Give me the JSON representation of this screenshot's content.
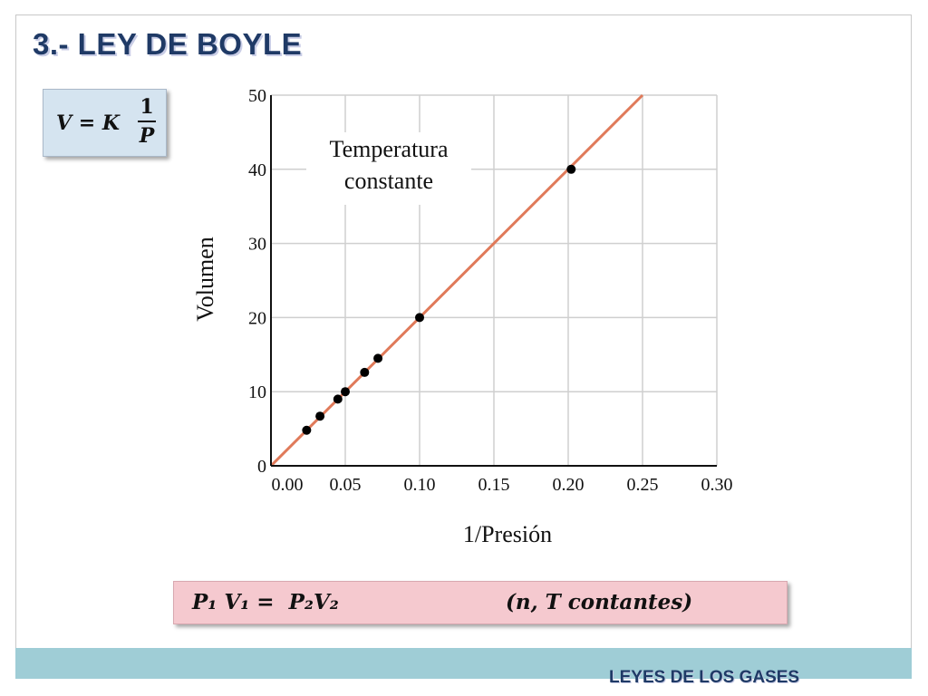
{
  "slide": {
    "title": "3.- LEY DE BOYLE",
    "footer": "LEYES DE LOS GASES"
  },
  "formula": {
    "lhs": "V = K",
    "numerator": "1",
    "denominator": "P"
  },
  "law": {
    "equation": "P₁ V₁ =  P₂V₂",
    "conditions": "(n, T contantes)"
  },
  "colors": {
    "title": "#1f3a66",
    "line": "#e07a5a",
    "points": "#000000",
    "grid": "#cfcfcf",
    "formula_box": "#d5e4f0",
    "law_box": "#f5c9cf",
    "footer_band": "#9fcdd6"
  },
  "chart_data": {
    "type": "scatter",
    "title": "",
    "xlabel": "1/Presión",
    "ylabel": "Volumen",
    "xlim": [
      0,
      0.3
    ],
    "ylim": [
      0,
      50
    ],
    "x_ticks": [
      "0.00",
      "0.05",
      "0.10",
      "0.15",
      "0.20",
      "0.25",
      "0.30"
    ],
    "y_ticks": [
      "0",
      "10",
      "20",
      "30",
      "40",
      "50"
    ],
    "grid": true,
    "annotation": [
      "Temperatura",
      "constante"
    ],
    "series": [
      {
        "x": [
          0.024,
          0.033,
          0.045,
          0.05,
          0.063,
          0.072,
          0.1,
          0.202
        ],
        "y": [
          4.8,
          6.7,
          9.0,
          10.0,
          12.6,
          14.5,
          20.0,
          40.0
        ]
      }
    ],
    "fit_line": {
      "x": [
        0,
        0.25
      ],
      "y": [
        0,
        50
      ]
    }
  }
}
